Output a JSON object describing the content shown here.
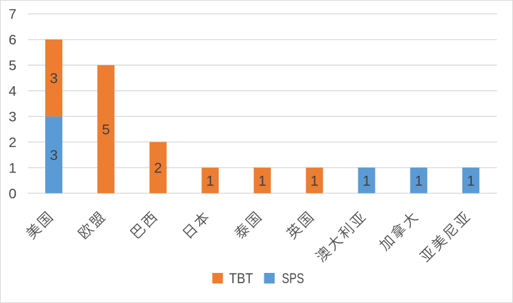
{
  "chart_data": {
    "type": "bar",
    "stacked": true,
    "orientation": "vertical",
    "title": "",
    "xlabel": "",
    "ylabel": "",
    "categories": [
      "美国",
      "欧盟",
      "巴西",
      "日本",
      "泰国",
      "英国",
      "澳大利亚",
      "加拿大",
      "亚美尼亚"
    ],
    "series": [
      {
        "name": "TBT",
        "color": "#ED7D31",
        "values": [
          3,
          5,
          2,
          1,
          1,
          1,
          0,
          0,
          0
        ]
      },
      {
        "name": "SPS",
        "color": "#5B9BD5",
        "values": [
          3,
          0,
          0,
          0,
          0,
          0,
          1,
          1,
          1
        ]
      }
    ],
    "stack_order_bottom_to_top": [
      "SPS",
      "TBT"
    ],
    "totals": [
      6,
      5,
      2,
      1,
      1,
      1,
      1,
      1,
      1
    ],
    "ylim": [
      0,
      7
    ],
    "yticks": [
      0,
      1,
      2,
      3,
      4,
      5,
      6,
      7
    ],
    "grid": "horizontal",
    "data_labels": true,
    "legend_position": "bottom",
    "legend": [
      "TBT",
      "SPS"
    ]
  },
  "style": {
    "background": "#FFFFFF",
    "border_color": "#D9D9D9",
    "gridline_color": "#D9D9D9",
    "axis_line_color": "#D9D9D9",
    "tick_label_color": "#474747",
    "category_label_color": "#4d4d4d",
    "data_label_color": "#404040",
    "legend_text_color": "#474747"
  }
}
